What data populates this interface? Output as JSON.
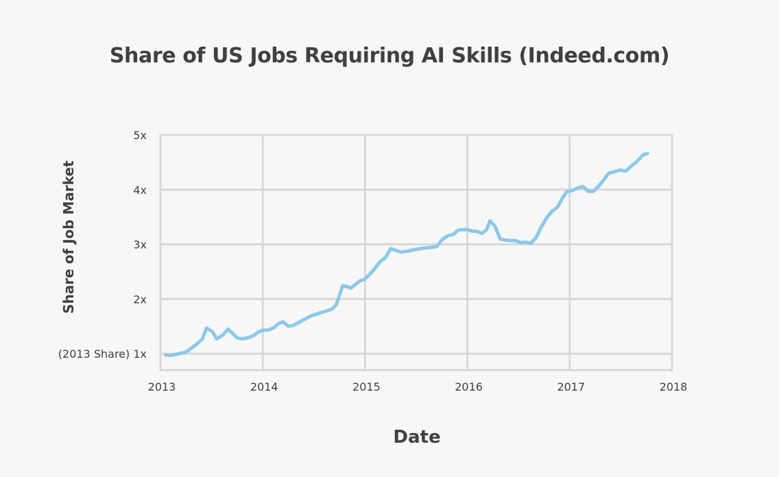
{
  "chart_data": {
    "type": "line",
    "title": "Share of US Jobs Requiring AI Skills (Indeed.com)",
    "xlabel": "Date",
    "ylabel": "Share of Job Market",
    "xlim": [
      2013,
      2018
    ],
    "ylim": [
      0.7,
      5
    ],
    "x_ticks": [
      2013,
      2014,
      2015,
      2016,
      2017,
      2018
    ],
    "x_tick_labels": [
      "2013",
      "2014",
      "2015",
      "2016",
      "2017",
      "2018"
    ],
    "y_ticks": [
      1,
      2,
      3,
      4,
      5
    ],
    "y_tick_labels": [
      "(2013 Share) 1x",
      "2x",
      "3x",
      "4x",
      "5x"
    ],
    "grid": true,
    "legend": "none",
    "series": [
      {
        "color": "#8cc8ea",
        "x": [
          2013.05,
          2013.1,
          2013.16,
          2013.2,
          2013.24,
          2013.3,
          2013.37,
          2013.41,
          2013.45,
          2013.51,
          2013.55,
          2013.61,
          2013.66,
          2013.7,
          2013.75,
          2013.8,
          2013.87,
          2013.91,
          2013.95,
          2014.0,
          2014.05,
          2014.11,
          2014.16,
          2014.2,
          2014.25,
          2014.3,
          2014.37,
          2014.41,
          2014.47,
          2014.55,
          2014.62,
          2014.68,
          2014.72,
          2014.78,
          2014.82,
          2014.86,
          2014.9,
          2014.95,
          2015.0,
          2015.05,
          2015.1,
          2015.15,
          2015.2,
          2015.25,
          2015.3,
          2015.35,
          2015.4,
          2015.5,
          2015.57,
          2015.63,
          2015.7,
          2015.76,
          2015.81,
          2015.86,
          2015.91,
          2015.95,
          2016.0,
          2016.05,
          2016.09,
          2016.14,
          2016.19,
          2016.22,
          2016.27,
          2016.32,
          2016.37,
          2016.42,
          2016.47,
          2016.52,
          2016.57,
          2016.62,
          2016.67,
          2016.72,
          2016.78,
          2016.83,
          2016.88,
          2016.93,
          2016.97,
          2017.03,
          2017.09,
          2017.13,
          2017.18,
          2017.23,
          2017.28,
          2017.33,
          2017.38,
          2017.44,
          2017.49,
          2017.55,
          2017.6,
          2017.66,
          2017.72,
          2017.76
        ],
        "y": [
          0.98,
          0.97,
          0.99,
          1.01,
          1.02,
          1.1,
          1.2,
          1.27,
          1.47,
          1.4,
          1.27,
          1.34,
          1.45,
          1.38,
          1.29,
          1.27,
          1.3,
          1.33,
          1.39,
          1.43,
          1.43,
          1.48,
          1.56,
          1.58,
          1.5,
          1.52,
          1.59,
          1.63,
          1.69,
          1.74,
          1.78,
          1.82,
          1.9,
          2.24,
          2.23,
          2.2,
          2.26,
          2.33,
          2.37,
          2.46,
          2.57,
          2.69,
          2.76,
          2.92,
          2.89,
          2.86,
          2.87,
          2.91,
          2.93,
          2.94,
          2.96,
          3.1,
          3.16,
          3.18,
          3.26,
          3.27,
          3.27,
          3.24,
          3.24,
          3.2,
          3.27,
          3.43,
          3.33,
          3.1,
          3.08,
          3.07,
          3.07,
          3.03,
          3.04,
          3.02,
          3.12,
          3.31,
          3.5,
          3.61,
          3.68,
          3.85,
          3.96,
          3.99,
          4.04,
          4.06,
          3.97,
          3.97,
          4.06,
          4.17,
          4.3,
          4.33,
          4.36,
          4.34,
          4.43,
          4.52,
          4.64,
          4.66
        ]
      }
    ]
  }
}
